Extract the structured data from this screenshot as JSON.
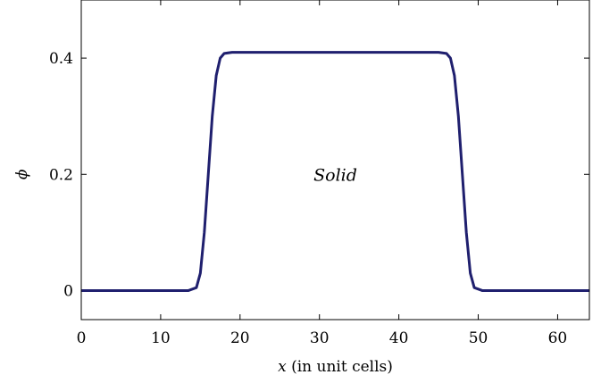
{
  "chart_data": {
    "type": "line",
    "title": "",
    "xlabel_var": "x",
    "xlabel_rest": " (in unit cells)",
    "ylabel": "ϕ",
    "xlim": [
      0,
      64
    ],
    "ylim": [
      -0.05,
      0.5
    ],
    "xticks": [
      0,
      10,
      20,
      30,
      40,
      50,
      60
    ],
    "yticks": [
      0,
      0.2,
      0.4
    ],
    "ytick_labels": [
      "0",
      "0.2",
      "0.4"
    ],
    "grid": false,
    "legend": "none",
    "annotation": {
      "text": "Solid",
      "x": 32,
      "y": 0.2
    },
    "series": [
      {
        "color": "#1f1f6e",
        "x": [
          0,
          13.5,
          14.5,
          15.0,
          15.5,
          16.0,
          16.5,
          17.0,
          17.5,
          18.0,
          19.0,
          45.0,
          46.0,
          46.5,
          47.0,
          47.5,
          48.0,
          48.5,
          49.0,
          49.5,
          50.5,
          64
        ],
        "y": [
          0,
          0,
          0.005,
          0.03,
          0.1,
          0.2,
          0.3,
          0.37,
          0.4,
          0.408,
          0.41,
          0.41,
          0.408,
          0.4,
          0.37,
          0.3,
          0.2,
          0.1,
          0.03,
          0.005,
          0,
          0
        ]
      }
    ]
  }
}
